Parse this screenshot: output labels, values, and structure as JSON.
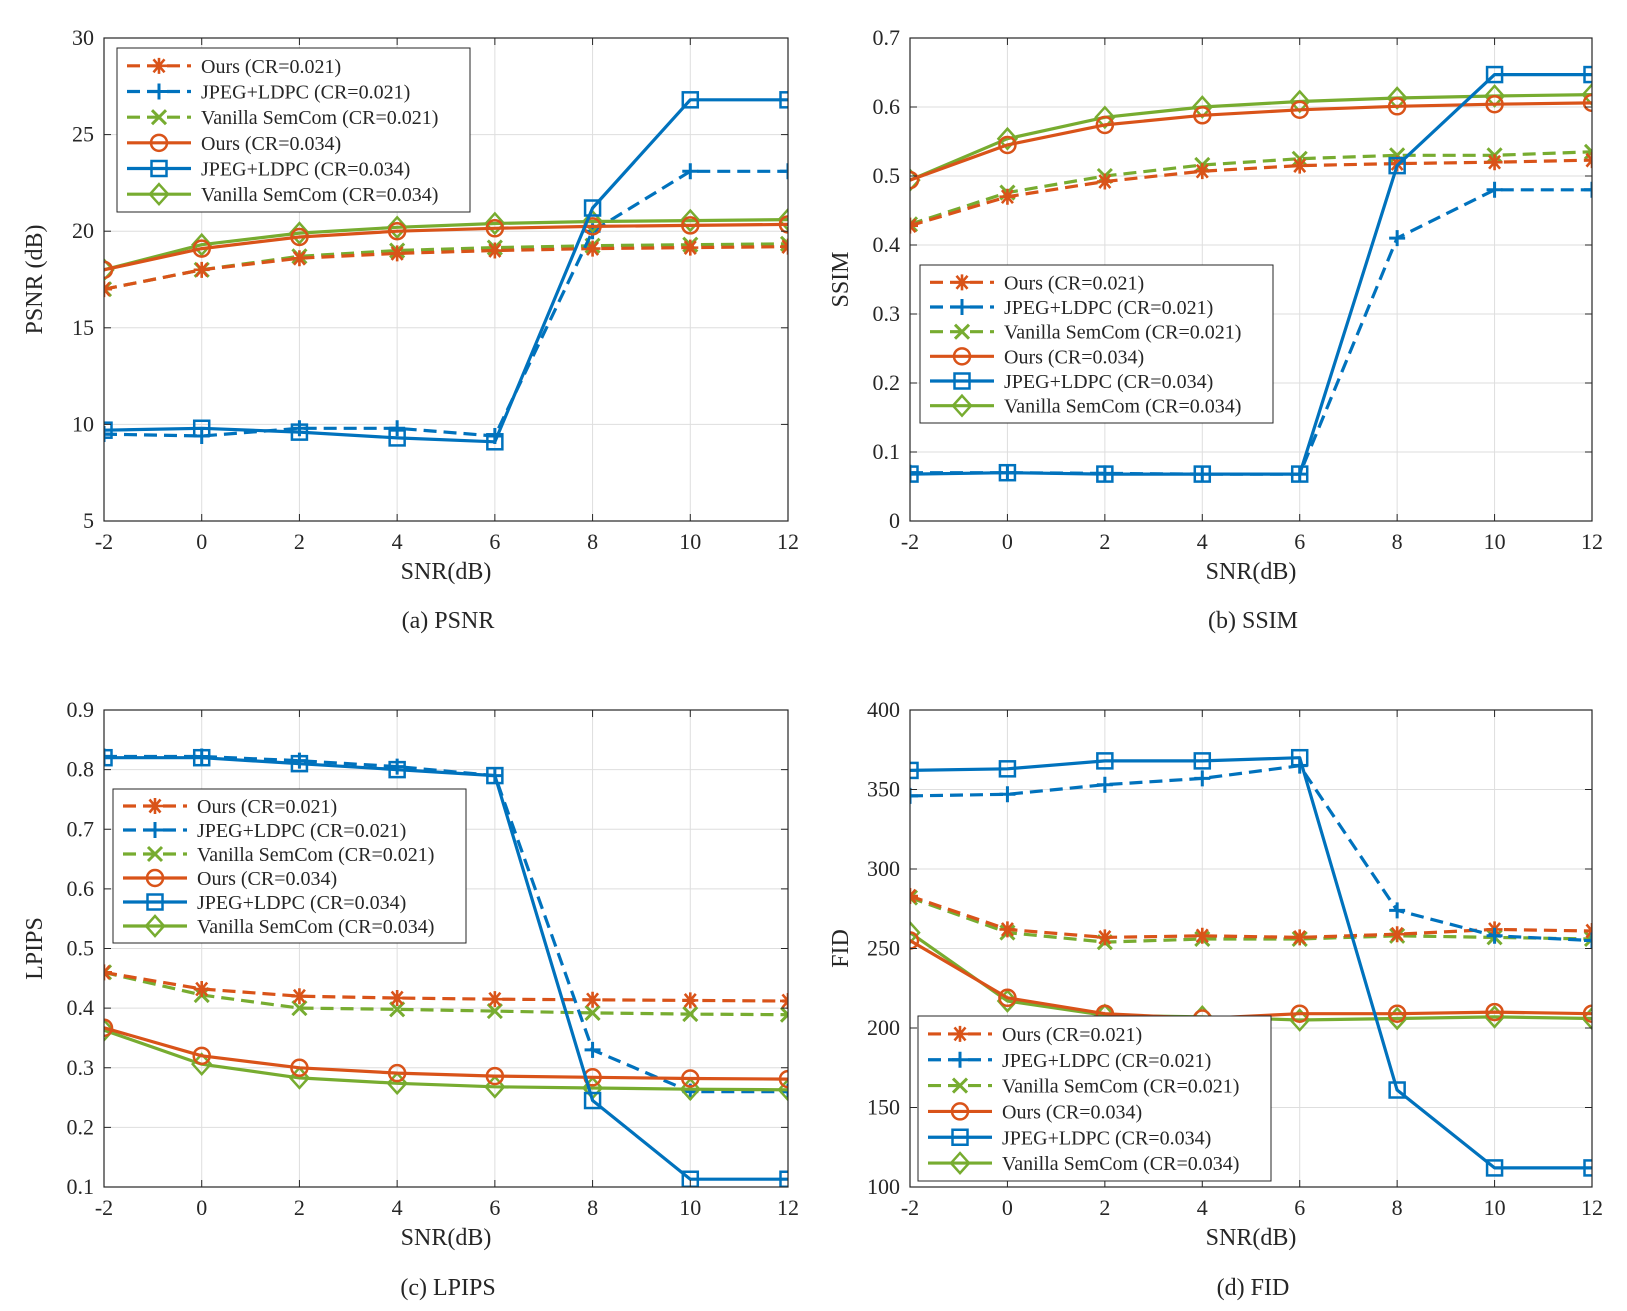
{
  "chart_data": [
    {
      "type": "line",
      "caption": "(a) PSNR",
      "xlabel": "SNR(dB)",
      "ylabel": "PSNR (dB)",
      "x": [
        -2,
        0,
        2,
        4,
        6,
        8,
        10,
        12
      ],
      "xticks": [
        "-2",
        "0",
        "2",
        "4",
        "6",
        "8",
        "10",
        "12"
      ],
      "yticks": [
        "5",
        "10",
        "15",
        "20",
        "25",
        "30"
      ],
      "xlim": [
        -2,
        12
      ],
      "ylim": [
        5,
        30
      ],
      "grid": true,
      "legend": "top-left",
      "series": [
        {
          "name": "Ours (CR=0.021)",
          "values": [
            17.0,
            18.0,
            18.6,
            18.85,
            19.0,
            19.1,
            19.15,
            19.2
          ]
        },
        {
          "name": "JPEG+LDPC (CR=0.021)",
          "values": [
            9.5,
            9.4,
            9.8,
            9.8,
            9.4,
            20.0,
            23.1,
            23.1
          ]
        },
        {
          "name": "Vanilla SemCom (CR=0.021)",
          "values": [
            17.0,
            18.0,
            18.7,
            19.0,
            19.15,
            19.25,
            19.3,
            19.35
          ]
        },
        {
          "name": "Ours (CR=0.034)",
          "values": [
            18.0,
            19.1,
            19.7,
            20.0,
            20.15,
            20.25,
            20.3,
            20.35
          ]
        },
        {
          "name": "JPEG+LDPC (CR=0.034)",
          "values": [
            9.7,
            9.8,
            9.6,
            9.3,
            9.1,
            21.2,
            26.8,
            26.8
          ]
        },
        {
          "name": "Vanilla SemCom (CR=0.034)",
          "values": [
            18.0,
            19.3,
            19.9,
            20.2,
            20.4,
            20.5,
            20.55,
            20.6
          ]
        }
      ]
    },
    {
      "type": "line",
      "caption": "(b) SSIM",
      "xlabel": "SNR(dB)",
      "ylabel": "SSIM",
      "x": [
        -2,
        0,
        2,
        4,
        6,
        8,
        10,
        12
      ],
      "xticks": [
        "-2",
        "0",
        "2",
        "4",
        "6",
        "8",
        "10",
        "12"
      ],
      "yticks": [
        "0",
        "0.1",
        "0.2",
        "0.3",
        "0.4",
        "0.5",
        "0.6",
        "0.7"
      ],
      "xlim": [
        -2,
        12
      ],
      "ylim": [
        0,
        0.7
      ],
      "grid": true,
      "legend": "middle-left",
      "series": [
        {
          "name": "Ours (CR=0.021)",
          "values": [
            0.428,
            0.47,
            0.492,
            0.507,
            0.515,
            0.518,
            0.52,
            0.523
          ]
        },
        {
          "name": "JPEG+LDPC (CR=0.021)",
          "values": [
            0.07,
            0.07,
            0.069,
            0.068,
            0.068,
            0.41,
            0.48,
            0.48
          ]
        },
        {
          "name": "Vanilla SemCom (CR=0.021)",
          "values": [
            0.43,
            0.476,
            0.5,
            0.516,
            0.525,
            0.53,
            0.53,
            0.535
          ]
        },
        {
          "name": "Ours (CR=0.034)",
          "values": [
            0.494,
            0.545,
            0.574,
            0.588,
            0.596,
            0.601,
            0.604,
            0.606
          ]
        },
        {
          "name": "JPEG+LDPC (CR=0.034)",
          "values": [
            0.068,
            0.07,
            0.068,
            0.068,
            0.068,
            0.515,
            0.647,
            0.647
          ]
        },
        {
          "name": "Vanilla SemCom (CR=0.034)",
          "values": [
            0.494,
            0.554,
            0.585,
            0.6,
            0.608,
            0.613,
            0.616,
            0.618
          ]
        }
      ]
    },
    {
      "type": "line",
      "caption": "(c) LPIPS",
      "xlabel": "SNR(dB)",
      "ylabel": "LPIPS",
      "x": [
        -2,
        0,
        2,
        4,
        6,
        8,
        10,
        12
      ],
      "xticks": [
        "-2",
        "0",
        "2",
        "4",
        "6",
        "8",
        "10",
        "12"
      ],
      "yticks": [
        "0.1",
        "0.2",
        "0.3",
        "0.4",
        "0.5",
        "0.6",
        "0.7",
        "0.8",
        "0.9"
      ],
      "xlim": [
        -2,
        12
      ],
      "ylim": [
        0.1,
        0.9
      ],
      "grid": true,
      "legend": "middle-left",
      "series": [
        {
          "name": "Ours (CR=0.021)",
          "values": [
            0.46,
            0.432,
            0.42,
            0.417,
            0.415,
            0.414,
            0.413,
            0.412
          ]
        },
        {
          "name": "JPEG+LDPC (CR=0.021)",
          "values": [
            0.822,
            0.822,
            0.815,
            0.805,
            0.79,
            0.33,
            0.26,
            0.26
          ]
        },
        {
          "name": "Vanilla SemCom (CR=0.021)",
          "values": [
            0.46,
            0.422,
            0.4,
            0.398,
            0.395,
            0.392,
            0.39,
            0.389
          ]
        },
        {
          "name": "Ours (CR=0.034)",
          "values": [
            0.367,
            0.32,
            0.3,
            0.291,
            0.286,
            0.284,
            0.282,
            0.281
          ]
        },
        {
          "name": "JPEG+LDPC (CR=0.034)",
          "values": [
            0.82,
            0.82,
            0.81,
            0.8,
            0.79,
            0.245,
            0.113,
            0.113
          ]
        },
        {
          "name": "Vanilla SemCom (CR=0.034)",
          "values": [
            0.363,
            0.306,
            0.283,
            0.274,
            0.268,
            0.266,
            0.264,
            0.263
          ]
        }
      ]
    },
    {
      "type": "line",
      "caption": "(d) FID",
      "xlabel": "SNR(dB)",
      "ylabel": "FID",
      "x": [
        -2,
        0,
        2,
        4,
        6,
        8,
        10,
        12
      ],
      "xticks": [
        "-2",
        "0",
        "2",
        "4",
        "6",
        "8",
        "10",
        "12"
      ],
      "yticks": [
        "100",
        "150",
        "200",
        "250",
        "300",
        "350",
        "400"
      ],
      "xlim": [
        -2,
        12
      ],
      "ylim": [
        100,
        400
      ],
      "grid": true,
      "legend": "bottom-left",
      "series": [
        {
          "name": "Ours (CR=0.021)",
          "values": [
            283,
            262,
            257,
            258,
            257,
            259,
            262,
            261
          ]
        },
        {
          "name": "JPEG+LDPC (CR=0.021)",
          "values": [
            346,
            347,
            353,
            357,
            365,
            274,
            258,
            255
          ]
        },
        {
          "name": "Vanilla SemCom (CR=0.021)",
          "values": [
            282,
            260,
            254,
            256,
            256,
            258,
            257,
            256
          ]
        },
        {
          "name": "Ours (CR=0.034)",
          "values": [
            255,
            219,
            209,
            206,
            209,
            209,
            210,
            209
          ]
        },
        {
          "name": "JPEG+LDPC (CR=0.034)",
          "values": [
            362,
            363,
            368,
            368,
            370,
            161,
            112,
            112
          ]
        },
        {
          "name": "Vanilla SemCom (CR=0.034)",
          "values": [
            260,
            217,
            208,
            207,
            205,
            206,
            207,
            206
          ]
        }
      ]
    }
  ],
  "styles": [
    {
      "color": "#D95319",
      "dash": true,
      "marker": "asterisk"
    },
    {
      "color": "#0072BD",
      "dash": true,
      "marker": "plus"
    },
    {
      "color": "#77AC30",
      "dash": true,
      "marker": "x"
    },
    {
      "color": "#D95319",
      "dash": false,
      "marker": "circle"
    },
    {
      "color": "#0072BD",
      "dash": false,
      "marker": "square"
    },
    {
      "color": "#77AC30",
      "dash": false,
      "marker": "diamond"
    }
  ],
  "draw_order": [
    2,
    0,
    1,
    5,
    3,
    4
  ]
}
